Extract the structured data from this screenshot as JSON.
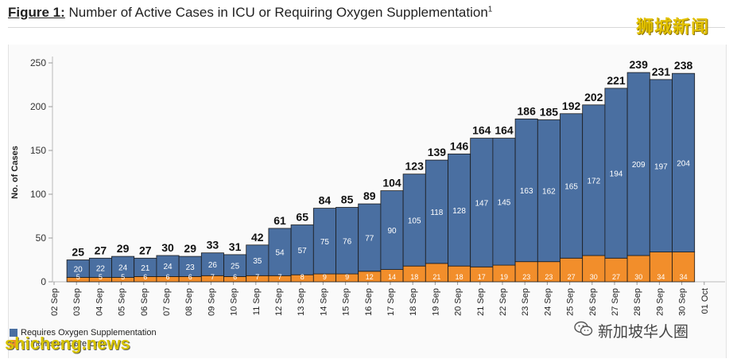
{
  "header": {
    "figure_label": "Figure 1:",
    "title": "Number of Active Cases in ICU or Requiring Oxygen Supplementation",
    "footnote_mark": "1"
  },
  "watermarks": {
    "top_right": "狮城新闻",
    "bottom_left": "shicheng.news",
    "bottom_right": "新加坡华人圈",
    "bottom_right_icon": "wechat-icon"
  },
  "colors": {
    "oxygen": "#4a6fa1",
    "icu": "#f28e2b",
    "bar_border": "#1a1a1a"
  },
  "chart_data": {
    "type": "bar",
    "stacked": true,
    "ylabel": "No. of Cases",
    "xlabel": "",
    "ylim": [
      0,
      250
    ],
    "yticks": [
      0,
      50,
      100,
      150,
      200,
      250
    ],
    "x_labels": [
      "02 Sep",
      "03 Sep",
      "04 Sep",
      "05 Sep",
      "06 Sep",
      "07 Sep",
      "08 Sep",
      "09 Sep",
      "10 Sep",
      "11 Sep",
      "12 Sep",
      "13 Sep",
      "14 Sep",
      "15 Sep",
      "16 Sep",
      "17 Sep",
      "18 Sep",
      "19 Sep",
      "20 Sep",
      "21 Sep",
      "22 Sep",
      "23 Sep",
      "24 Sep",
      "25 Sep",
      "26 Sep",
      "27 Sep",
      "28 Sep",
      "29 Sep",
      "30 Sep",
      "01 Oct"
    ],
    "categories": [
      "03 Sep",
      "04 Sep",
      "05 Sep",
      "06 Sep",
      "07 Sep",
      "08 Sep",
      "09 Sep",
      "10 Sep",
      "11 Sep",
      "12 Sep",
      "13 Sep",
      "14 Sep",
      "15 Sep",
      "16 Sep",
      "17 Sep",
      "18 Sep",
      "19 Sep",
      "20 Sep",
      "21 Sep",
      "22 Sep",
      "23 Sep",
      "24 Sep",
      "25 Sep",
      "26 Sep",
      "27 Sep",
      "28 Sep",
      "29 Sep",
      "30 Sep"
    ],
    "series": [
      {
        "name": "In Intensive Care Unit",
        "values": [
          5,
          5,
          5,
          6,
          6,
          6,
          7,
          6,
          7,
          7,
          8,
          9,
          9,
          12,
          14,
          18,
          21,
          18,
          17,
          19,
          23,
          23,
          27,
          30,
          27,
          30,
          34,
          34
        ]
      },
      {
        "name": "Requires Oxygen Supplementation",
        "values": [
          20,
          22,
          24,
          21,
          24,
          23,
          26,
          25,
          35,
          54,
          57,
          75,
          76,
          77,
          90,
          105,
          118,
          128,
          147,
          145,
          163,
          162,
          165,
          172,
          194,
          209,
          197,
          204
        ]
      }
    ],
    "totals": [
      25,
      27,
      29,
      27,
      30,
      29,
      33,
      31,
      42,
      61,
      65,
      84,
      85,
      89,
      104,
      123,
      139,
      146,
      164,
      164,
      186,
      185,
      192,
      202,
      221,
      239,
      231,
      238
    ],
    "legend": [
      "Requires Oxygen Supplementation",
      "In Intensive Care Unit"
    ],
    "legend_position": "bottom-left",
    "grid": false
  }
}
